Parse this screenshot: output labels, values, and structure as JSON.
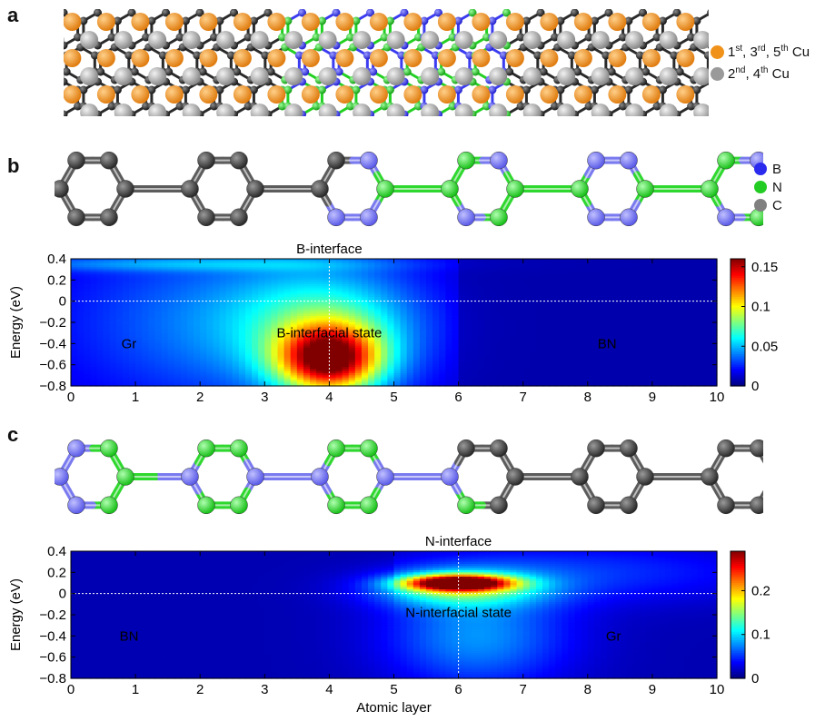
{
  "panels": {
    "a": {
      "letter": "a",
      "legend": [
        {
          "label": "1st, 3rd, 5th Cu",
          "color": "#f0921a"
        },
        {
          "label": "2nd, 4th Cu",
          "color": "#9a9a9a"
        }
      ]
    },
    "b": {
      "letter": "b",
      "legend": [
        {
          "label": "B",
          "color": "#2a2aee"
        },
        {
          "label": "N",
          "color": "#22cc22"
        },
        {
          "label": "C",
          "color": "#808080"
        }
      ]
    },
    "c": {
      "letter": "c"
    }
  },
  "colors": {
    "boron": "#3b3bf0",
    "nitrogen": "#22d022",
    "carbon": "#555555",
    "cu_odd": "#f0921a",
    "cu_even": "#9a9a9a"
  },
  "chart_data": [
    {
      "type": "heatmap",
      "title": "B-interface",
      "xlabel": "",
      "ylabel": "Energy (eV)",
      "xlim": [
        0,
        10
      ],
      "ylim": [
        -0.8,
        0.4
      ],
      "x_ticks": [
        "0",
        "1",
        "2",
        "3",
        "4",
        "5",
        "6",
        "7",
        "8",
        "9",
        "10"
      ],
      "y_ticks": [
        "0.4",
        "0.2",
        "0",
        "-0.2",
        "-0.4",
        "-0.6",
        "-0.8"
      ],
      "colorbar": {
        "range": [
          0,
          0.16
        ],
        "ticks": [
          "0.15",
          "0.1",
          "0.05",
          "0"
        ]
      },
      "interface_x": 4,
      "fermi_level": 0,
      "annotations": [
        {
          "text": "Gr",
          "x": 0.9,
          "y": -0.4
        },
        {
          "text": "B-interfacial state",
          "x": 4.0,
          "y": -0.3
        },
        {
          "text": "BN",
          "x": 8.3,
          "y": -0.4
        }
      ],
      "peak": {
        "x": 4.0,
        "y": -0.55,
        "value": 0.15
      }
    },
    {
      "type": "heatmap",
      "title": "N-interface",
      "xlabel": "Atomic layer",
      "ylabel": "Energy (eV)",
      "xlim": [
        0,
        10
      ],
      "ylim": [
        -0.8,
        0.4
      ],
      "x_ticks": [
        "0",
        "1",
        "2",
        "3",
        "4",
        "5",
        "6",
        "7",
        "8",
        "9",
        "10"
      ],
      "y_ticks": [
        "0.4",
        "0.2",
        "0",
        "-0.2",
        "-0.4",
        "-0.6",
        "-0.8"
      ],
      "colorbar": {
        "range": [
          0,
          0.29
        ],
        "ticks": [
          "0.2",
          "0.1",
          "0"
        ]
      },
      "interface_x": 6,
      "fermi_level": 0,
      "annotations": [
        {
          "text": "BN",
          "x": 0.9,
          "y": -0.4
        },
        {
          "text": "N-interfacial state",
          "x": 6.0,
          "y": -0.18
        },
        {
          "text": "Gr",
          "x": 8.4,
          "y": -0.4
        }
      ],
      "peak": {
        "x": 6.0,
        "y": 0.1,
        "value": 0.28
      }
    }
  ]
}
